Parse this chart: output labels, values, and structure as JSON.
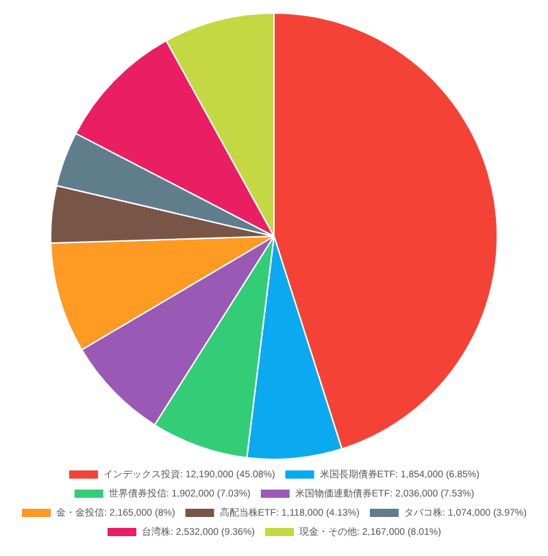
{
  "chart_data": {
    "type": "pie",
    "categories": [
      "インデックス投資: 12,190,000 (45.08%)",
      "米国長期債券ETF: 1,854,000 (6.85%)",
      "世界債券投信: 1,902,000 (7.03%)",
      "米国物価連動債券ETF: 2,036,000 (7.53%)",
      "金・金投信: 2,165,000 (8%)",
      "高配当株ETF: 1,118,000 (4.13%)",
      "タバコ株: 1,074,000 (3.97%)",
      "台湾株: 2,532,000 (9.36%)",
      "現金・その他: 2,167,000 (8.01%)"
    ],
    "values": [
      12190000,
      1854000,
      1902000,
      2036000,
      2165000,
      1118000,
      1074000,
      2532000,
      2167000
    ],
    "colors": [
      "#f44336",
      "#0aa9f0",
      "#33cc77",
      "#9b59b6",
      "#ff9a22",
      "#795548",
      "#607d8b",
      "#e91e63",
      "#c3d843"
    ],
    "legend": "bottom"
  }
}
